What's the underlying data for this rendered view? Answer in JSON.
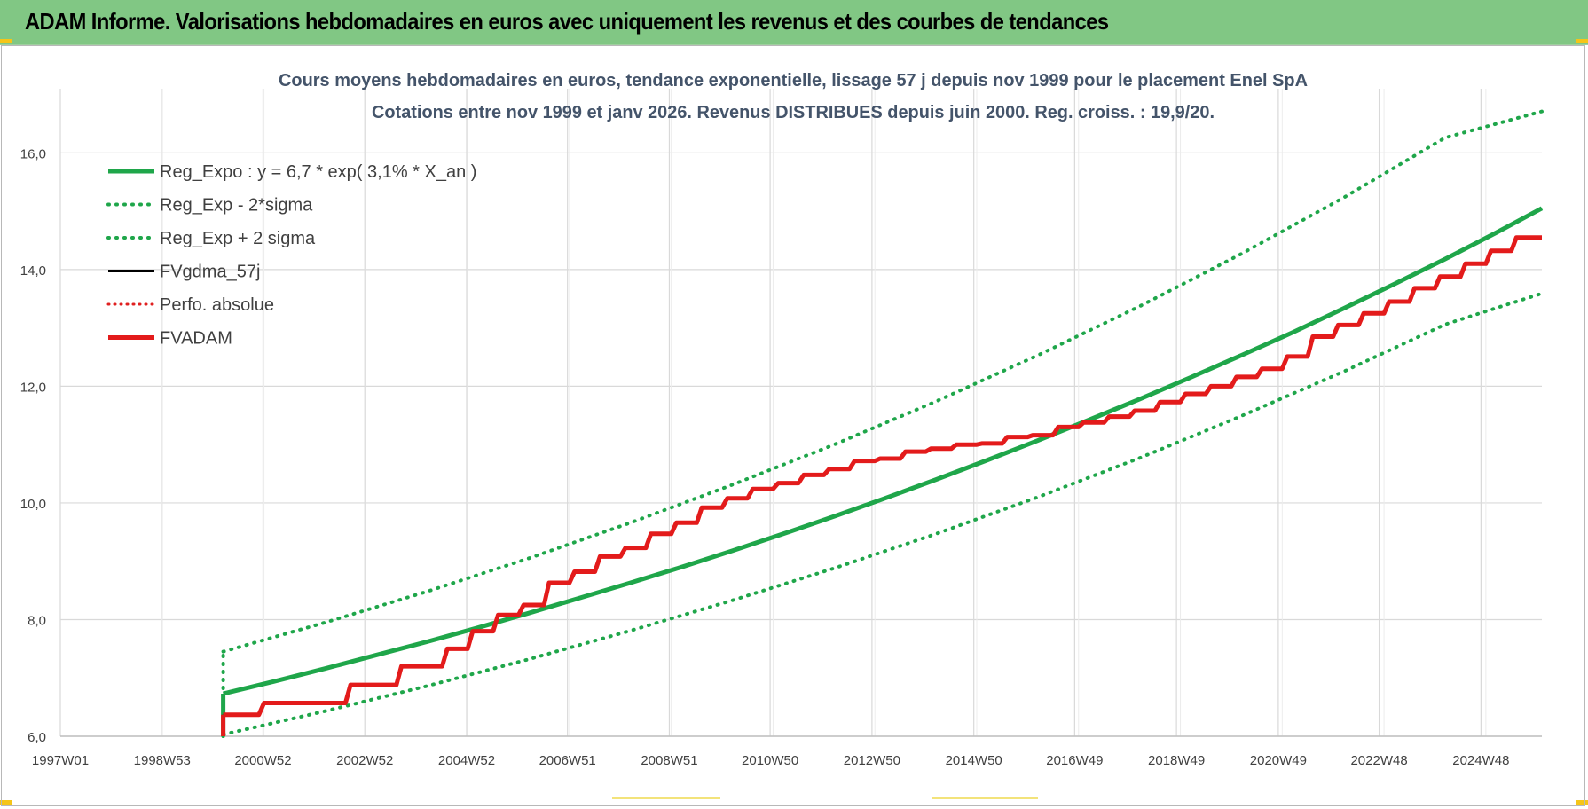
{
  "banner": {
    "title": "ADAM Informe. Valorisations hebdomadaires en euros avec uniquement les revenus et des courbes de tendances"
  },
  "chart_data": {
    "type": "line",
    "title_lines": [
      "Cours moyens hebdomadaires en euros, tendance exponentielle, lissage 57 j depuis nov 1999 pour le placement Enel SpA",
      "Cotations entre nov 1999 et janv 2026. Revenus DISTRIBUES depuis juin 2000. Reg. croiss. : 19,9/20."
    ],
    "xlabel": "",
    "ylabel": "",
    "x_tick_labels": [
      "1997W01",
      "1998W53",
      "2000W52",
      "2002W52",
      "2004W52",
      "2006W51",
      "2008W51",
      "2010W50",
      "2012W50",
      "2014W50",
      "2016W49",
      "2018W49",
      "2020W49",
      "2022W48",
      "2024W48"
    ],
    "x_range": [
      1997.0,
      2026.1
    ],
    "y_tick_labels": [
      "6,0",
      "8,0",
      "10,0",
      "12,0",
      "14,0",
      "16,0"
    ],
    "ylim": [
      6.0,
      17.1
    ],
    "grid": true,
    "legend_position": "top-left",
    "colors": {
      "trend": "#1fa64a",
      "band": "#1fa64a",
      "fvgdma": "#000000",
      "perfo": "#e02020",
      "fvadam": "#e31b1b",
      "grid": "#d9d9d9",
      "text": "#404040",
      "title": "#44546a"
    },
    "series": [
      {
        "name": "Reg_Expo : y = 6,7 * exp( 3,1% *  X_an )",
        "style": "solid",
        "x": [
          2000.2,
          2001.2,
          2002.2,
          2003.2,
          2004.2,
          2005.2,
          2006.2,
          2007.2,
          2008.2,
          2009.2,
          2010.2,
          2011.2,
          2012.2,
          2013.2,
          2014.2,
          2015.2,
          2016.2,
          2017.2,
          2018.2,
          2019.2,
          2020.2,
          2021.2,
          2022.2,
          2023.2,
          2024.2,
          2025.2,
          2026.1
        ],
        "y": [
          6.73,
          6.94,
          7.16,
          7.39,
          7.62,
          7.86,
          8.11,
          8.37,
          8.63,
          8.9,
          9.18,
          9.47,
          9.77,
          10.08,
          10.4,
          10.73,
          11.07,
          11.42,
          11.78,
          12.15,
          12.53,
          12.92,
          13.33,
          13.75,
          14.18,
          14.63,
          15.05
        ]
      },
      {
        "name": "Reg_Exp - 2*sigma",
        "style": "dotted",
        "x": [
          2000.2,
          2002.2,
          2004.2,
          2006.2,
          2008.2,
          2010.2,
          2012.2,
          2014.2,
          2016.2,
          2018.2,
          2020.2,
          2022.2,
          2024.2,
          2026.1
        ],
        "y": [
          6.03,
          6.43,
          6.86,
          7.32,
          7.81,
          8.33,
          8.88,
          9.47,
          10.1,
          10.77,
          11.49,
          12.25,
          13.06,
          13.59
        ]
      },
      {
        "name": "Reg_Exp + 2 sigma",
        "style": "dotted",
        "x": [
          2000.2,
          2002.2,
          2004.2,
          2006.2,
          2008.2,
          2010.2,
          2012.2,
          2014.2,
          2016.2,
          2018.2,
          2020.2,
          2022.2,
          2024.2,
          2026.1
        ],
        "y": [
          7.45,
          7.95,
          8.48,
          9.05,
          9.66,
          10.31,
          11.0,
          11.74,
          12.53,
          13.37,
          14.27,
          15.23,
          16.26,
          16.71
        ]
      },
      {
        "name": "FVgdma_57j",
        "style": "solid",
        "x": [
          2000.2,
          2000.9,
          2001.0,
          2002.6,
          2002.7,
          2003.6,
          2003.7,
          2004.5,
          2004.6,
          2005.0,
          2005.1,
          2005.5,
          2005.6,
          2006.0,
          2006.1,
          2006.5,
          2006.6,
          2007.0,
          2007.1,
          2007.5,
          2007.6,
          2008.0,
          2008.1,
          2008.5,
          2008.6,
          2009.0,
          2009.1,
          2009.5,
          2009.6,
          2010.0,
          2010.1,
          2010.5,
          2010.6,
          2011.0,
          2011.1,
          2011.5,
          2011.6,
          2012.0,
          2012.1,
          2012.5,
          2012.6,
          2013.0,
          2013.1,
          2013.5,
          2013.6,
          2014.0,
          2014.1,
          2014.5,
          2014.6,
          2015.0,
          2015.1,
          2015.5,
          2015.6,
          2016.0,
          2016.1,
          2016.5,
          2016.6,
          2017.0,
          2017.1,
          2017.5,
          2017.6,
          2018.0,
          2018.1,
          2018.5,
          2018.6,
          2019.0,
          2019.1,
          2019.5,
          2019.6,
          2020.0,
          2020.1,
          2020.5,
          2020.6,
          2021.0,
          2021.1,
          2021.5,
          2021.6,
          2022.0,
          2022.1,
          2022.5,
          2022.6,
          2023.0,
          2023.1,
          2023.5,
          2023.6,
          2024.0,
          2024.1,
          2024.5,
          2024.6,
          2025.0,
          2025.1,
          2025.5,
          2025.6,
          2026.1
        ],
        "y": [
          6.37,
          6.37,
          6.57,
          6.57,
          6.88,
          6.88,
          7.2,
          7.2,
          7.5,
          7.5,
          7.8,
          7.8,
          8.08,
          8.08,
          8.25,
          8.25,
          8.63,
          8.63,
          8.82,
          8.82,
          9.08,
          9.08,
          9.23,
          9.23,
          9.47,
          9.47,
          9.66,
          9.66,
          9.92,
          9.92,
          10.08,
          10.08,
          10.24,
          10.24,
          10.34,
          10.34,
          10.48,
          10.48,
          10.58,
          10.58,
          10.72,
          10.72,
          10.76,
          10.76,
          10.88,
          10.88,
          10.93,
          10.93,
          11.0,
          11.0,
          11.02,
          11.02,
          11.13,
          11.13,
          11.16,
          11.16,
          11.3,
          11.3,
          11.38,
          11.38,
          11.48,
          11.48,
          11.58,
          11.58,
          11.73,
          11.73,
          11.87,
          11.87,
          12.0,
          12.0,
          12.16,
          12.16,
          12.3,
          12.3,
          12.51,
          12.51,
          12.85,
          12.85,
          13.05,
          13.05,
          13.25,
          13.25,
          13.45,
          13.45,
          13.68,
          13.68,
          13.88,
          13.88,
          14.1,
          14.1,
          14.32,
          14.32,
          14.55,
          14.55
        ]
      },
      {
        "name": "Perfo. absolue",
        "style": "dotted",
        "x": [],
        "y": []
      },
      {
        "name": "FVADAM",
        "style": "solid",
        "x": [
          2000.2,
          2000.9,
          2001.0,
          2002.6,
          2002.7,
          2003.6,
          2003.7,
          2004.5,
          2004.6,
          2005.0,
          2005.1,
          2005.5,
          2005.6,
          2006.0,
          2006.1,
          2006.5,
          2006.6,
          2007.0,
          2007.1,
          2007.5,
          2007.6,
          2008.0,
          2008.1,
          2008.5,
          2008.6,
          2009.0,
          2009.1,
          2009.5,
          2009.6,
          2010.0,
          2010.1,
          2010.5,
          2010.6,
          2011.0,
          2011.1,
          2011.5,
          2011.6,
          2012.0,
          2012.1,
          2012.5,
          2012.6,
          2013.0,
          2013.1,
          2013.5,
          2013.6,
          2014.0,
          2014.1,
          2014.5,
          2014.6,
          2015.0,
          2015.1,
          2015.5,
          2015.6,
          2016.0,
          2016.1,
          2016.5,
          2016.6,
          2017.0,
          2017.1,
          2017.5,
          2017.6,
          2018.0,
          2018.1,
          2018.5,
          2018.6,
          2019.0,
          2019.1,
          2019.5,
          2019.6,
          2020.0,
          2020.1,
          2020.5,
          2020.6,
          2021.0,
          2021.1,
          2021.5,
          2021.6,
          2022.0,
          2022.1,
          2022.5,
          2022.6,
          2023.0,
          2023.1,
          2023.5,
          2023.6,
          2024.0,
          2024.1,
          2024.5,
          2024.6,
          2025.0,
          2025.1,
          2025.5,
          2025.6,
          2026.1
        ],
        "y": [
          6.37,
          6.37,
          6.57,
          6.57,
          6.88,
          6.88,
          7.2,
          7.2,
          7.5,
          7.5,
          7.8,
          7.8,
          8.08,
          8.08,
          8.25,
          8.25,
          8.63,
          8.63,
          8.82,
          8.82,
          9.08,
          9.08,
          9.23,
          9.23,
          9.47,
          9.47,
          9.66,
          9.66,
          9.92,
          9.92,
          10.08,
          10.08,
          10.24,
          10.24,
          10.34,
          10.34,
          10.48,
          10.48,
          10.58,
          10.58,
          10.72,
          10.72,
          10.76,
          10.76,
          10.88,
          10.88,
          10.93,
          10.93,
          11.0,
          11.0,
          11.02,
          11.02,
          11.13,
          11.13,
          11.16,
          11.16,
          11.3,
          11.3,
          11.38,
          11.38,
          11.48,
          11.48,
          11.58,
          11.58,
          11.73,
          11.73,
          11.87,
          11.87,
          12.0,
          12.0,
          12.16,
          12.16,
          12.3,
          12.3,
          12.51,
          12.51,
          12.85,
          12.85,
          13.05,
          13.05,
          13.25,
          13.25,
          13.45,
          13.45,
          13.68,
          13.68,
          13.88,
          13.88,
          14.1,
          14.1,
          14.32,
          14.32,
          14.55,
          14.55
        ]
      }
    ]
  }
}
